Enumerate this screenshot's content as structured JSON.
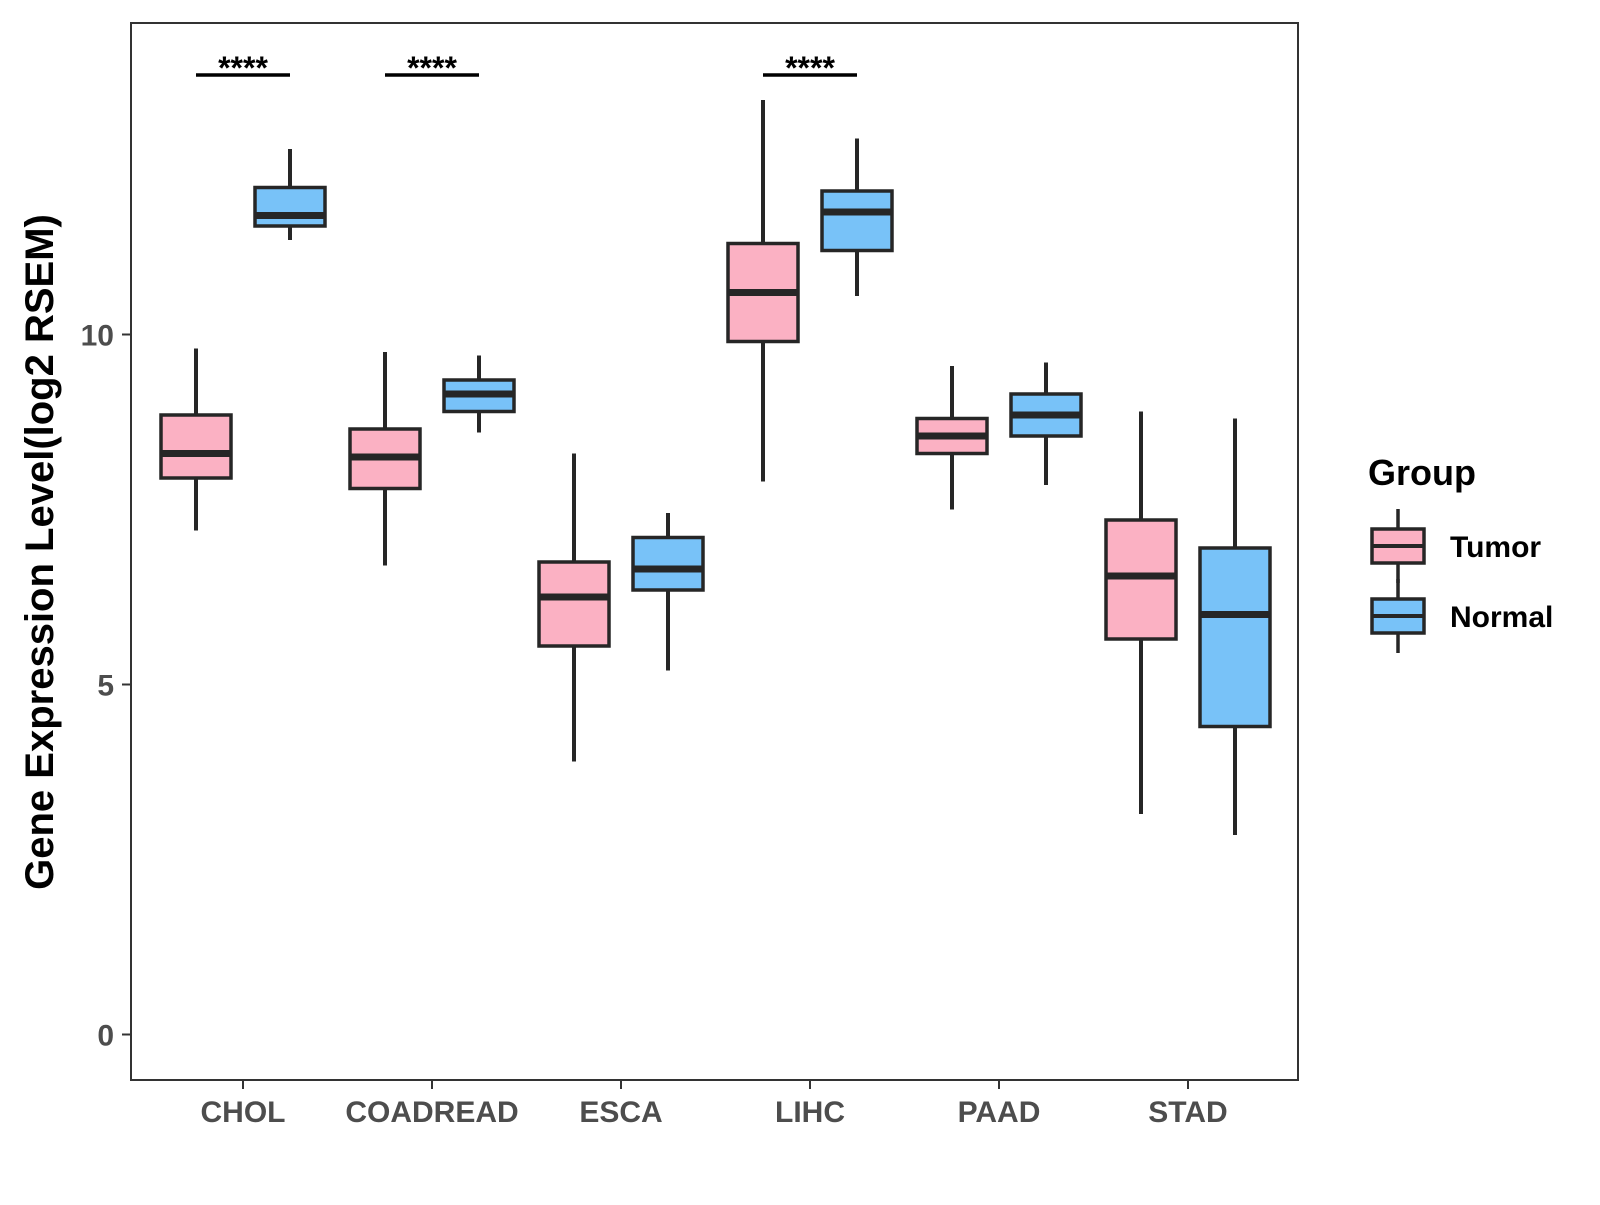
{
  "chart_data": {
    "type": "boxplot",
    "title": "",
    "xlabel": "",
    "ylabel": "Gene Expression Level(log2 RSEM)",
    "ylim": [
      -0.65,
      14.45
    ],
    "yticks": [
      0,
      5,
      10
    ],
    "grid": false,
    "categories": [
      "CHOL",
      "COADREAD",
      "ESCA",
      "LIHC",
      "PAAD",
      "STAD"
    ],
    "legend": {
      "title": "Group",
      "position": "right",
      "entries": [
        {
          "name": "Tumor",
          "color": "#fbb1c3"
        },
        {
          "name": "Normal",
          "color": "#78c2f8"
        }
      ]
    },
    "series": [
      {
        "name": "Tumor",
        "color": "#fbb1c3",
        "boxes": [
          {
            "whisker_low": 7.2,
            "q1": 7.95,
            "median": 8.3,
            "q3": 8.85,
            "whisker_high": 9.8
          },
          {
            "whisker_low": 6.7,
            "q1": 7.8,
            "median": 8.25,
            "q3": 8.65,
            "whisker_high": 9.75
          },
          {
            "whisker_low": 3.9,
            "q1": 5.55,
            "median": 6.25,
            "q3": 6.75,
            "whisker_high": 8.3
          },
          {
            "whisker_low": 7.9,
            "q1": 9.9,
            "median": 10.6,
            "q3": 11.3,
            "whisker_high": 13.35
          },
          {
            "whisker_low": 7.5,
            "q1": 8.3,
            "median": 8.55,
            "q3": 8.8,
            "whisker_high": 9.55
          },
          {
            "whisker_low": 3.15,
            "q1": 5.65,
            "median": 6.55,
            "q3": 7.35,
            "whisker_high": 8.9
          }
        ]
      },
      {
        "name": "Normal",
        "color": "#78c2f8",
        "boxes": [
          {
            "whisker_low": 11.35,
            "q1": 11.55,
            "median": 11.7,
            "q3": 12.1,
            "whisker_high": 12.65
          },
          {
            "whisker_low": 8.6,
            "q1": 8.9,
            "median": 9.15,
            "q3": 9.35,
            "whisker_high": 9.7
          },
          {
            "whisker_low": 5.2,
            "q1": 6.35,
            "median": 6.65,
            "q3": 7.1,
            "whisker_high": 7.45
          },
          {
            "whisker_low": 10.55,
            "q1": 11.2,
            "median": 11.75,
            "q3": 12.05,
            "whisker_high": 12.8
          },
          {
            "whisker_low": 7.85,
            "q1": 8.55,
            "median": 8.85,
            "q3": 9.15,
            "whisker_high": 9.6
          },
          {
            "whisker_low": 2.85,
            "q1": 4.4,
            "median": 6.0,
            "q3": 6.95,
            "whisker_high": 8.8
          }
        ]
      }
    ],
    "significance": [
      {
        "category": "CHOL",
        "label": "****"
      },
      {
        "category": "COADREAD",
        "label": "****"
      },
      {
        "category": "LIHC",
        "label": "****"
      }
    ]
  }
}
